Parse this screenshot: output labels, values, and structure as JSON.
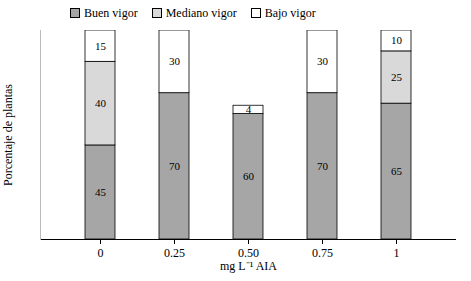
{
  "chart_data": {
    "type": "bar",
    "stacked": true,
    "data_labels": true,
    "tick_labels": "x",
    "x_label": "mg L⁻¹ AIA",
    "y_label": "Porcentaje de plantas",
    "categories": [
      "0",
      "0.25",
      "0.50",
      "0.75",
      "1"
    ],
    "series": [
      {
        "name": "Buen vigor",
        "color": "#a6a6a6",
        "values": [
          45,
          70,
          60,
          70,
          65
        ]
      },
      {
        "name": "Mediano vigor",
        "color": "#d9d9d9",
        "values": [
          40,
          null,
          null,
          null,
          25
        ]
      },
      {
        "name": "Bajo vigor",
        "color": "#ffffff",
        "values": [
          15,
          30,
          4,
          30,
          10
        ]
      }
    ],
    "ylim": [
      0,
      100
    ],
    "yticks": [],
    "legend": "top"
  }
}
